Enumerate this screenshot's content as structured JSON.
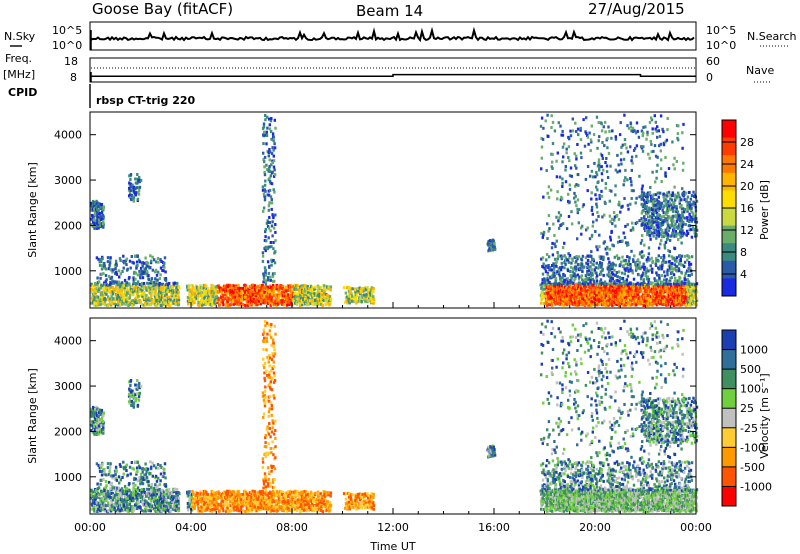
{
  "header": {
    "station": "Goose Bay (fitACF)",
    "beam": "Beam 14",
    "date": "27/Aug/2015"
  },
  "labels": {
    "nsky": "N.Sky",
    "nsearch": "N.Search",
    "freq": "Freq.",
    "freq_unit": "[MHz]",
    "nave": "Nave",
    "cpid": "CPID",
    "cpid_value": "rbsp CT-trig 220",
    "x_title": "Time UT",
    "y_title": "Slant Range [km]",
    "power_title": "Power [dB]",
    "velocity_title": "Velocity [m s⁻¹]"
  },
  "noise_axis": {
    "left_ticks": [
      "10^5",
      "10^0"
    ],
    "right_ticks": [
      "10^5",
      "10^0"
    ]
  },
  "freq_axis": {
    "left_ticks": [
      "18",
      "8"
    ],
    "right_ticks": [
      "60",
      "0"
    ]
  },
  "chart_data": {
    "type": "heatmap",
    "x_ticks": [
      "00:00",
      "04:00",
      "08:00",
      "12:00",
      "16:00",
      "20:00",
      "00:00"
    ],
    "x_range_hours": [
      0,
      24
    ],
    "y_ticks": [
      1000,
      2000,
      3000,
      4000
    ],
    "y_range_km": [
      180,
      4500
    ],
    "panels": [
      {
        "name": "power",
        "colorbar_ticks": [
          "28",
          "24",
          "20",
          "16",
          "12",
          "8",
          "4"
        ],
        "colorbar_colors": [
          "#ff0000",
          "#ff3c00",
          "#ff7800",
          "#ffb400",
          "#ffdd00",
          "#c9d93f",
          "#6aac6a",
          "#3a8a80",
          "#2a5aa8",
          "#1a2ae0"
        ]
      },
      {
        "name": "velocity",
        "colorbar_ticks": [
          "1000",
          "500",
          "100",
          "25",
          "-25",
          "-100",
          "-500",
          "-1000"
        ],
        "colorbar_colors": [
          "#1b3fb0",
          "#2f6f9a",
          "#3f8f5f",
          "#6fcf3f",
          "#c0c0c0",
          "#ffcc33",
          "#ff9900",
          "#ff5500",
          "#ff0000"
        ]
      }
    ],
    "frequency_steps_mhz": [
      {
        "start_hour": 0.0,
        "end_hour": 12.0,
        "value": 10.4
      },
      {
        "start_hour": 12.0,
        "end_hour": 21.8,
        "value": 11.1
      },
      {
        "start_hour": 21.8,
        "end_hour": 24.0,
        "value": 10.4
      }
    ]
  }
}
